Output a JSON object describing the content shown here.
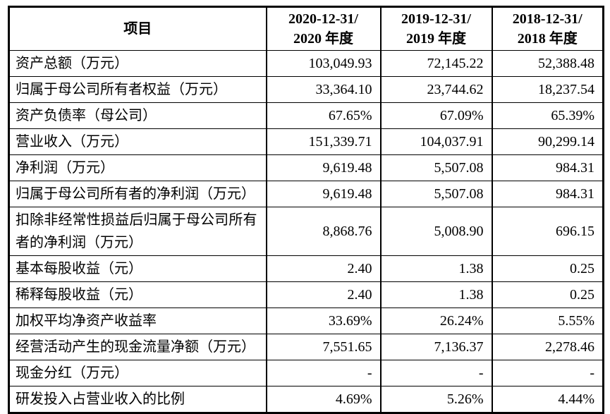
{
  "colors": {
    "border": "#000000",
    "text": "#000000",
    "background": "#ffffff"
  },
  "table": {
    "columns": {
      "item_header": "项目",
      "periods": [
        {
          "line1": "2020-12-31/",
          "line2": "2020 年度"
        },
        {
          "line1": "2019-12-31/",
          "line2": "2019 年度"
        },
        {
          "line1": "2018-12-31/",
          "line2": "2018 年度"
        }
      ]
    },
    "rows": [
      {
        "item": "资产总额（万元）",
        "values": [
          "103,049.93",
          "72,145.22",
          "52,388.48"
        ]
      },
      {
        "item": "归属于母公司所有者权益（万元）",
        "values": [
          "33,364.10",
          "23,744.62",
          "18,237.54"
        ]
      },
      {
        "item": "资产负债率（母公司）",
        "values": [
          "67.65%",
          "67.09%",
          "65.39%"
        ]
      },
      {
        "item": "营业收入（万元）",
        "values": [
          "151,339.71",
          "104,037.91",
          "90,299.14"
        ]
      },
      {
        "item": "净利润（万元）",
        "values": [
          "9,619.48",
          "5,507.08",
          "984.31"
        ]
      },
      {
        "item": "归属于母公司所有者的净利润（万元）",
        "values": [
          "9,619.48",
          "5,507.08",
          "984.31"
        ]
      },
      {
        "item": "扣除非经常性损益后归属于母公司所有者的净利润（万元）",
        "values": [
          "8,868.76",
          "5,008.90",
          "696.15"
        ]
      },
      {
        "item": "基本每股收益（元）",
        "values": [
          "2.40",
          "1.38",
          "0.25"
        ]
      },
      {
        "item": "稀释每股收益（元）",
        "values": [
          "2.40",
          "1.38",
          "0.25"
        ]
      },
      {
        "item": "加权平均净资产收益率",
        "values": [
          "33.69%",
          "26.24%",
          "5.55%"
        ]
      },
      {
        "item": "经营活动产生的现金流量净额（万元）",
        "values": [
          "7,551.65",
          "7,136.37",
          "2,278.46"
        ]
      },
      {
        "item": "现金分红（万元）",
        "values": [
          "-",
          "-",
          "-"
        ]
      },
      {
        "item": "研发投入占营业收入的比例",
        "values": [
          "4.69%",
          "5.26%",
          "4.44%"
        ]
      }
    ]
  }
}
